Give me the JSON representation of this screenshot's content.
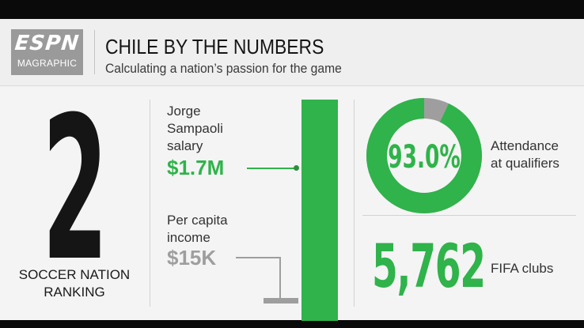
{
  "header": {
    "logo_main": "ESPN",
    "logo_sub": "MAGRAPHIC",
    "title": "CHILE BY THE NUMBERS",
    "subtitle": "Calculating a nation’s passion for the game"
  },
  "ranking": {
    "number": "2",
    "caption_line1": "SOCCER NATION",
    "caption_line2": "RANKING"
  },
  "salary": {
    "label_line1": "Jorge",
    "label_line2": "Sampaoli",
    "label_line3": "salary",
    "value": "$1.7M"
  },
  "income": {
    "label_line1": "Per capita",
    "label_line2": "income",
    "value": "$15K"
  },
  "attendance": {
    "percent_text": "93.0%",
    "percent": 93.0,
    "label_line1": "Attendance",
    "label_line2": "at qualifiers"
  },
  "clubs": {
    "number": "5,762",
    "label": "FIFA clubs"
  },
  "colors": {
    "green": "#2fb34a",
    "gray": "#9e9e9e",
    "dark": "#151515"
  }
}
